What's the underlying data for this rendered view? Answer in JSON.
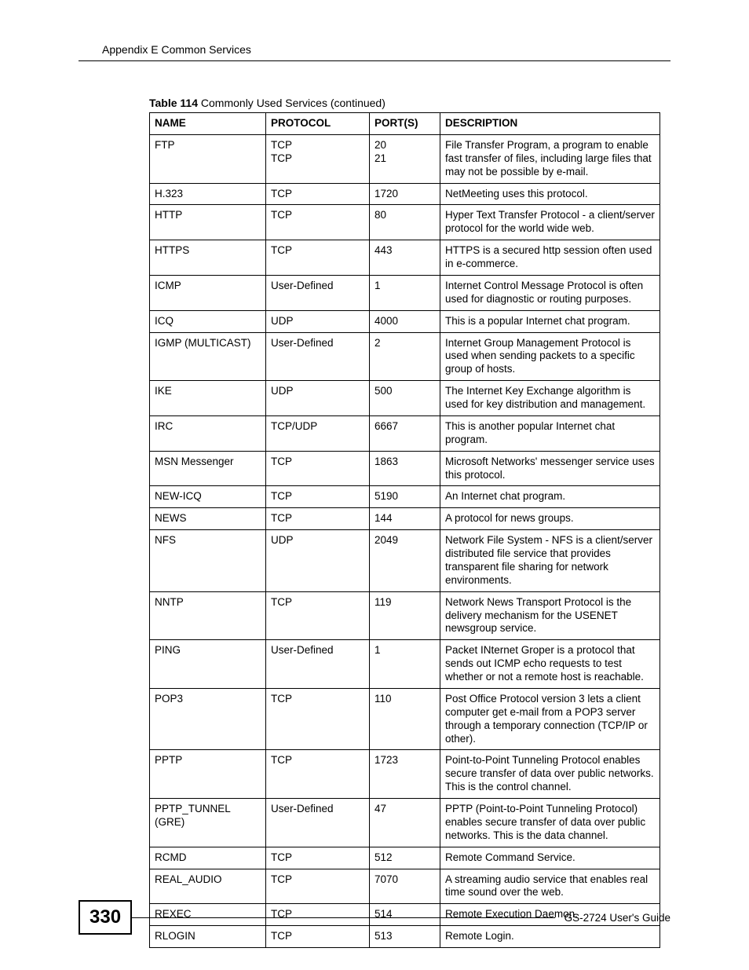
{
  "header": {
    "text": "Appendix E Common Services"
  },
  "table": {
    "caption_bold": "Table 114",
    "caption_rest": "   Commonly Used Services (continued)",
    "columns": [
      "NAME",
      "PROTOCOL",
      "PORT(S)",
      "DESCRIPTION"
    ],
    "rows": [
      {
        "name": "FTP",
        "protocol": "TCP\nTCP",
        "ports": "20\n21",
        "desc": "File Transfer Program, a program to enable fast transfer of files, including large files that may not be possible by e-mail."
      },
      {
        "name": "H.323",
        "protocol": "TCP",
        "ports": "1720",
        "desc": "NetMeeting uses this protocol."
      },
      {
        "name": "HTTP",
        "protocol": "TCP",
        "ports": "80",
        "desc": "Hyper Text Transfer Protocol - a client/server protocol for the world wide web."
      },
      {
        "name": "HTTPS",
        "protocol": "TCP",
        "ports": "443",
        "desc": "HTTPS is a secured http session often used in e-commerce."
      },
      {
        "name": "ICMP",
        "protocol": "User-Defined",
        "ports": "1",
        "desc": "Internet Control Message Protocol is often used for diagnostic or routing purposes."
      },
      {
        "name": "ICQ",
        "protocol": "UDP",
        "ports": "4000",
        "desc": "This is a popular Internet chat program."
      },
      {
        "name": "IGMP (MULTICAST)",
        "protocol": "User-Defined",
        "ports": "2",
        "desc": "Internet Group Management Protocol is used when sending packets to a specific group of hosts."
      },
      {
        "name": "IKE",
        "protocol": "UDP",
        "ports": "500",
        "desc": "The Internet Key Exchange algorithm is used for key distribution and management."
      },
      {
        "name": "IRC",
        "protocol": "TCP/UDP",
        "ports": "6667",
        "desc": "This is another popular Internet chat program."
      },
      {
        "name": "MSN Messenger",
        "protocol": "TCP",
        "ports": "1863",
        "desc": "Microsoft Networks' messenger service uses this protocol."
      },
      {
        "name": "NEW-ICQ",
        "protocol": "TCP",
        "ports": "5190",
        "desc": "An Internet chat program."
      },
      {
        "name": "NEWS",
        "protocol": "TCP",
        "ports": "144",
        "desc": "A protocol for news groups."
      },
      {
        "name": "NFS",
        "protocol": "UDP",
        "ports": "2049",
        "desc": "Network File System - NFS is a client/server distributed file service that provides transparent file sharing for network environments."
      },
      {
        "name": "NNTP",
        "protocol": "TCP",
        "ports": "119",
        "desc": "Network News Transport Protocol is the delivery mechanism for the USENET newsgroup service."
      },
      {
        "name": "PING",
        "protocol": "User-Defined",
        "ports": "1",
        "desc": "Packet INternet Groper is a protocol that sends out ICMP echo requests to test whether or not a remote host is reachable."
      },
      {
        "name": "POP3",
        "protocol": "TCP",
        "ports": "110",
        "desc": "Post Office Protocol version 3 lets a client computer get e-mail from a POP3 server through a temporary connection (TCP/IP or other)."
      },
      {
        "name": "PPTP",
        "protocol": "TCP",
        "ports": "1723",
        "desc": "Point-to-Point Tunneling Protocol enables secure transfer of data over public networks. This is the control channel."
      },
      {
        "name": "PPTP_TUNNEL (GRE)",
        "protocol": "User-Defined",
        "ports": "47",
        "desc": "PPTP (Point-to-Point Tunneling Protocol) enables secure transfer of data over public networks. This is the data channel."
      },
      {
        "name": "RCMD",
        "protocol": "TCP",
        "ports": "512",
        "desc": "Remote Command Service."
      },
      {
        "name": "REAL_AUDIO",
        "protocol": "TCP",
        "ports": "7070",
        "desc": "A streaming audio service that enables real time sound over the web."
      },
      {
        "name": "REXEC",
        "protocol": "TCP",
        "ports": "514",
        "desc": "Remote Execution Daemon."
      },
      {
        "name": "RLOGIN",
        "protocol": "TCP",
        "ports": "513",
        "desc": "Remote Login."
      }
    ]
  },
  "footer": {
    "page_number": "330",
    "guide": "GS-2724 User's Guide"
  }
}
